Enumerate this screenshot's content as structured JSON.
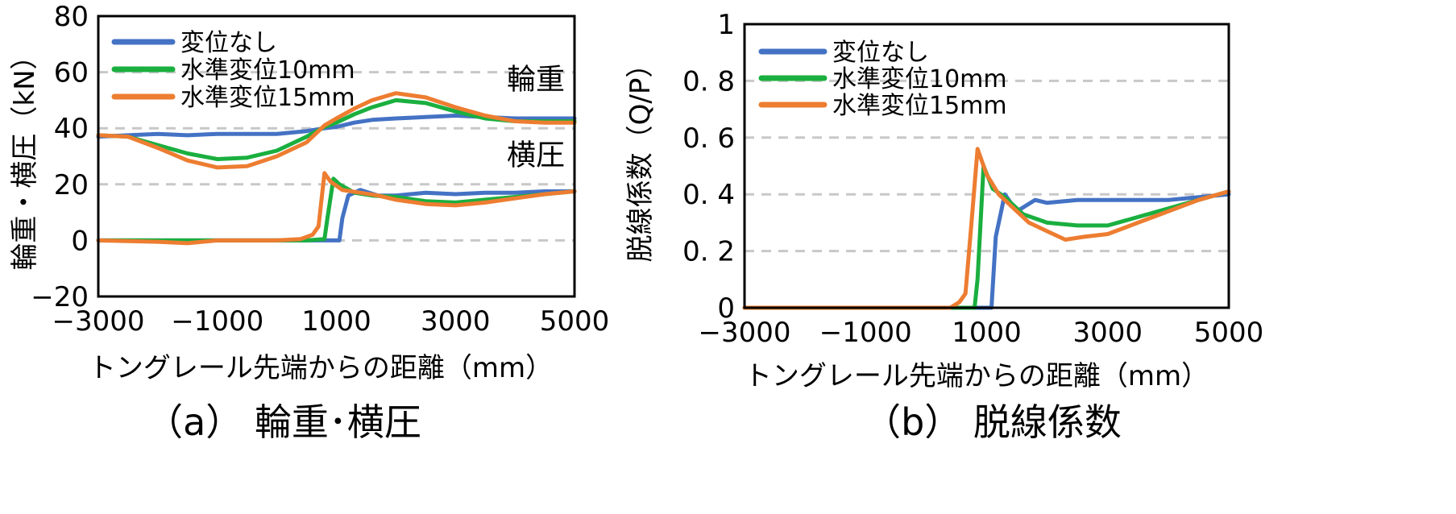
{
  "chart_data": [
    {
      "type": "line",
      "caption": "（a） 輪重･横圧",
      "xlabel": "トングレール先端からの距離（mm）",
      "ylabel": "輪重・横圧（kN）",
      "xlim": [
        -3000,
        5000
      ],
      "ylim": [
        -20,
        80
      ],
      "xticks": [
        -3000,
        -1000,
        1000,
        3000,
        5000
      ],
      "xtick_labels": [
        "−3000",
        "−1000",
        "1000",
        "3000",
        "5000"
      ],
      "yticks": [
        -20,
        0,
        20,
        40,
        60,
        80
      ],
      "ytick_labels": [
        "−20",
        "0",
        "20",
        "40",
        "60",
        "80"
      ],
      "grid": "horizontal-dashed",
      "legend_position": "top-left",
      "annotations": [
        {
          "text": "輪重",
          "x": 4350,
          "y": 54
        },
        {
          "text": "横圧",
          "x": 4350,
          "y": 27
        }
      ],
      "series": [
        {
          "name": "変位なし",
          "group": "輪重",
          "color": "#4472C4",
          "x": [
            -3000,
            -2500,
            -2000,
            -1500,
            -1000,
            -500,
            0,
            500,
            800,
            1000,
            1300,
            1600,
            2000,
            2500,
            3000,
            3500,
            4000,
            4500,
            5000
          ],
          "y": [
            37,
            37.5,
            38,
            37.5,
            38,
            38,
            38,
            39,
            40,
            40.5,
            42,
            43,
            43.5,
            44,
            44.5,
            44,
            43.5,
            43.5,
            43.5
          ]
        },
        {
          "name": "水準変位10mm",
          "group": "輪重",
          "color": "#1AAF3F",
          "x": [
            -3000,
            -2500,
            -2000,
            -1500,
            -1000,
            -500,
            0,
            500,
            800,
            1000,
            1300,
            1600,
            2000,
            2500,
            3000,
            3500,
            4000,
            4500,
            5000
          ],
          "y": [
            37.5,
            37,
            34,
            31,
            29,
            29.5,
            32,
            37,
            40.5,
            42,
            45,
            47.5,
            50,
            49,
            46,
            43.5,
            42.5,
            42.5,
            42.5
          ]
        },
        {
          "name": "水準変位15mm",
          "group": "輪重",
          "color": "#ED7D31",
          "x": [
            -3000,
            -2500,
            -2000,
            -1500,
            -1000,
            -500,
            0,
            500,
            800,
            1000,
            1300,
            1600,
            2000,
            2500,
            3000,
            3500,
            4000,
            4500,
            5000
          ],
          "y": [
            37.5,
            37,
            33,
            28.5,
            26,
            26.5,
            30,
            35,
            41,
            43.5,
            47,
            50,
            52.5,
            51,
            47.5,
            44.5,
            42.5,
            42,
            42
          ]
        },
        {
          "group": "横圧",
          "color": "#4472C4",
          "x": [
            -3000,
            -2000,
            -1000,
            0,
            500,
            900,
            1050,
            1100,
            1200,
            1400,
            1700,
            2000,
            2500,
            3000,
            3500,
            4000,
            4500,
            5000
          ],
          "y": [
            0,
            0,
            0,
            0,
            0,
            0,
            0,
            8,
            16,
            18,
            16,
            16,
            17,
            16.5,
            17,
            17,
            17.5,
            17.5
          ]
        },
        {
          "group": "横圧",
          "color": "#1AAF3F",
          "x": [
            -3000,
            -2000,
            -1000,
            0,
            500,
            800,
            850,
            950,
            1050,
            1300,
            1600,
            2000,
            2500,
            3000,
            3500,
            4000,
            4500,
            5000
          ],
          "y": [
            0,
            0,
            0,
            0,
            0,
            0.5,
            8,
            22,
            20,
            17,
            16,
            15.5,
            14,
            13.5,
            14.5,
            15.5,
            16.5,
            17.5
          ]
        },
        {
          "group": "横圧",
          "color": "#ED7D31",
          "x": [
            -3000,
            -2000,
            -1500,
            -1000,
            0,
            400,
            600,
            700,
            800,
            900,
            1100,
            1400,
            1700,
            2000,
            2500,
            3000,
            3500,
            4000,
            4500,
            5000
          ],
          "y": [
            0,
            -0.5,
            -1,
            0,
            0,
            0.5,
            2,
            5,
            24,
            21,
            18,
            17,
            16,
            14.5,
            13,
            12.5,
            13.5,
            15,
            16.5,
            17.5
          ]
        }
      ]
    },
    {
      "type": "line",
      "caption": "（b） 脱線係数",
      "xlabel": "トングレール先端からの距離（mm）",
      "ylabel": "脱線係数（Q/P）",
      "xlim": [
        -3000,
        5000
      ],
      "ylim": [
        0,
        1
      ],
      "xticks": [
        -3000,
        -1000,
        1000,
        3000,
        5000
      ],
      "xtick_labels": [
        "−3000",
        "−1000",
        "1000",
        "3000",
        "5000"
      ],
      "yticks": [
        0,
        0.2,
        0.4,
        0.6,
        0.8,
        1
      ],
      "ytick_labels": [
        "0",
        "0. 2",
        "0. 4",
        "0. 6",
        "0. 8",
        "1"
      ],
      "grid": "horizontal-dashed",
      "legend_position": "top-left",
      "series": [
        {
          "name": "変位なし",
          "color": "#4472C4",
          "x": [
            -3000,
            -2000,
            -1000,
            0,
            500,
            1000,
            1080,
            1150,
            1300,
            1500,
            1800,
            2000,
            2500,
            3000,
            3500,
            4000,
            4500,
            5000
          ],
          "y": [
            0,
            0,
            0,
            0,
            0,
            0,
            0,
            0.25,
            0.4,
            0.34,
            0.38,
            0.37,
            0.38,
            0.38,
            0.38,
            0.38,
            0.39,
            0.4
          ]
        },
        {
          "name": "水準変位10mm",
          "color": "#1AAF3F",
          "x": [
            -3000,
            -2000,
            -1000,
            0,
            500,
            800,
            850,
            950,
            1100,
            1300,
            1600,
            2000,
            2500,
            3000,
            3500,
            4000,
            4500,
            5000
          ],
          "y": [
            0,
            0,
            0,
            0,
            0,
            0,
            0.1,
            0.5,
            0.42,
            0.39,
            0.33,
            0.3,
            0.29,
            0.29,
            0.32,
            0.35,
            0.38,
            0.41
          ]
        },
        {
          "name": "水準変位15mm",
          "color": "#ED7D31",
          "x": [
            -3000,
            -2000,
            -1000,
            0,
            400,
            550,
            650,
            750,
            850,
            1000,
            1200,
            1400,
            1700,
            2000,
            2300,
            2600,
            3000,
            3500,
            4000,
            4500,
            5000
          ],
          "y": [
            0,
            0,
            0,
            0,
            0,
            0.02,
            0.05,
            0.3,
            0.56,
            0.47,
            0.4,
            0.36,
            0.3,
            0.27,
            0.24,
            0.25,
            0.26,
            0.3,
            0.34,
            0.38,
            0.41
          ]
        }
      ]
    }
  ]
}
